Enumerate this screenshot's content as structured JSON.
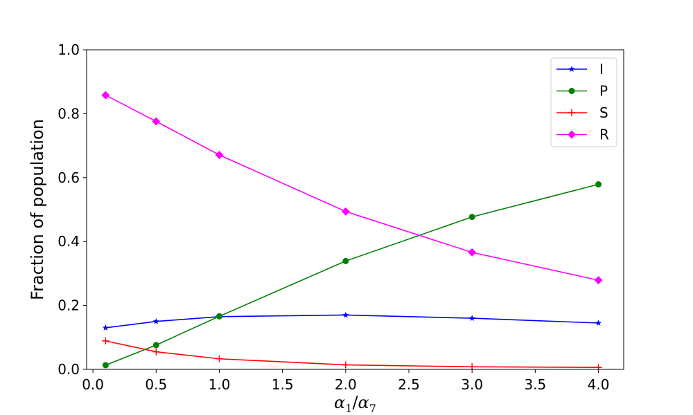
{
  "chart_data": {
    "type": "line",
    "title": "",
    "xlabel": "α1/α7",
    "xlabel_parts": {
      "a": "α",
      "sub1": "1",
      "slash": "/",
      "b": "α",
      "sub2": "7"
    },
    "ylabel": "Fraction of population",
    "xlim": [
      -0.05,
      4.2
    ],
    "ylim": [
      0.0,
      1.0
    ],
    "xticks": [
      0.0,
      0.5,
      1.0,
      1.5,
      2.0,
      2.5,
      3.0,
      3.5,
      4.0
    ],
    "xtick_labels": [
      "0.0",
      "0.5",
      "1.0",
      "1.5",
      "2.0",
      "2.5",
      "3.0",
      "3.5",
      "4.0"
    ],
    "yticks": [
      0.0,
      0.2,
      0.4,
      0.6,
      0.8,
      1.0
    ],
    "ytick_labels": [
      "0.0",
      "0.2",
      "0.4",
      "0.6",
      "0.8",
      "1.0"
    ],
    "grid": false,
    "legend_position": "top-right",
    "x": [
      0.1,
      0.5,
      1.0,
      2.0,
      3.0,
      4.0
    ],
    "series": [
      {
        "name": "I",
        "color": "#0000ff",
        "marker": "star",
        "values": [
          0.13,
          0.15,
          0.165,
          0.17,
          0.16,
          0.145
        ]
      },
      {
        "name": "P",
        "color": "#008000",
        "marker": "circle",
        "values": [
          0.013,
          0.076,
          0.166,
          0.339,
          0.477,
          0.579
        ]
      },
      {
        "name": "S",
        "color": "#ff0000",
        "marker": "plus",
        "values": [
          0.089,
          0.055,
          0.033,
          0.014,
          0.008,
          0.006
        ]
      },
      {
        "name": "R",
        "color": "#ff00ff",
        "marker": "diamond",
        "values": [
          0.858,
          0.776,
          0.671,
          0.494,
          0.366,
          0.279
        ]
      }
    ]
  }
}
